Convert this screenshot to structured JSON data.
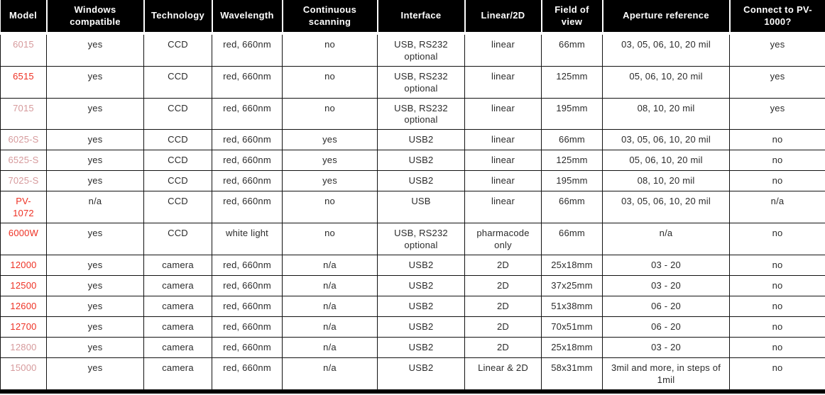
{
  "chart_data": {
    "type": "table",
    "columns": [
      "Model",
      "Windows compatible",
      "Technology",
      "Wavelength",
      "Continuous scanning",
      "Interface",
      "Linear/2D",
      "Field of view",
      "Aperture reference",
      "Connect to PV-1000?"
    ],
    "rows": [
      [
        "6015",
        "yes",
        "CCD",
        "red, 660nm",
        "no",
        "USB, RS232 optional",
        "linear",
        "66mm",
        "03, 05, 06, 10, 20 mil",
        "yes"
      ],
      [
        "6515",
        "yes",
        "CCD",
        "red, 660nm",
        "no",
        "USB, RS232 optional",
        "linear",
        "125mm",
        "05, 06, 10, 20 mil",
        "yes"
      ],
      [
        "7015",
        "yes",
        "CCD",
        "red, 660nm",
        "no",
        "USB, RS232 optional",
        "linear",
        "195mm",
        "08, 10, 20 mil",
        "yes"
      ],
      [
        "6025-S",
        "yes",
        "CCD",
        "red, 660nm",
        "yes",
        "USB2",
        "linear",
        "66mm",
        "03, 05, 06, 10, 20 mil",
        "no"
      ],
      [
        "6525-S",
        "yes",
        "CCD",
        "red, 660nm",
        "yes",
        "USB2",
        "linear",
        "125mm",
        "05, 06, 10, 20 mil",
        "no"
      ],
      [
        "7025-S",
        "yes",
        "CCD",
        "red, 660nm",
        "yes",
        "USB2",
        "linear",
        "195mm",
        "08, 10, 20 mil",
        "no"
      ],
      [
        "PV-1072",
        "n/a",
        "CCD",
        "red, 660nm",
        "no",
        "USB",
        "linear",
        "66mm",
        "03, 05, 06, 10, 20 mil",
        "n/a"
      ],
      [
        "6000W",
        "yes",
        "CCD",
        "white light",
        "no",
        "USB, RS232 optional",
        "pharmacode only",
        "66mm",
        "n/a",
        "no"
      ],
      [
        "12000",
        "yes",
        "camera",
        "red, 660nm",
        "n/a",
        "USB2",
        "2D",
        "25x18mm",
        "03 - 20",
        "no"
      ],
      [
        "12500",
        "yes",
        "camera",
        "red, 660nm",
        "n/a",
        "USB2",
        "2D",
        "37x25mm",
        "03 - 20",
        "no"
      ],
      [
        "12600",
        "yes",
        "camera",
        "red, 660nm",
        "n/a",
        "USB2",
        "2D",
        "51x38mm",
        "06 - 20",
        "no"
      ],
      [
        "12700",
        "yes",
        "camera",
        "red, 660nm",
        "n/a",
        "USB2",
        "2D",
        "70x51mm",
        "06 - 20",
        "no"
      ],
      [
        "12800",
        "yes",
        "camera",
        "red, 660nm",
        "n/a",
        "USB2",
        "2D",
        "25x18mm",
        "03 - 20",
        "no"
      ],
      [
        "15000",
        "yes",
        "camera",
        "red, 660nm",
        "n/a",
        "USB2",
        "Linear & 2D",
        "58x31mm",
        "3mil and more, in steps of 1mil",
        "no"
      ]
    ],
    "model_color_names": [
      "pink",
      "red",
      "pink",
      "pink",
      "pink",
      "pink",
      "red",
      "red",
      "red",
      "red",
      "red",
      "red",
      "pink",
      "pink"
    ],
    "title": "",
    "legend_position": "none",
    "grid": "full-borders"
  },
  "colors": {
    "header_bg": "#000000",
    "header_text": "#ffffff",
    "body_text": "#2b2b2b",
    "border": "#121212",
    "model_red": "#ee3124",
    "model_pink": "#d69a9c"
  }
}
